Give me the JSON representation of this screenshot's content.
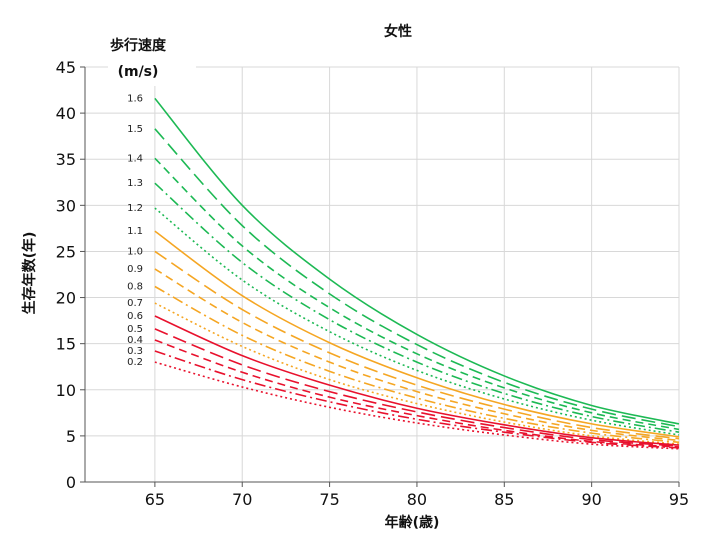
{
  "chart_data": {
    "type": "line",
    "title": "女性",
    "xlabel": "年齢(歳)",
    "ylabel": "生存年数(年)",
    "legend_title": "歩行速度",
    "legend_unit": "(m/s)",
    "xlim": [
      61,
      95
    ],
    "ylim": [
      0,
      45
    ],
    "x_ticks": [
      65,
      70,
      75,
      80,
      85,
      90,
      95
    ],
    "y_ticks": [
      0,
      5,
      10,
      15,
      20,
      25,
      30,
      35,
      40,
      45
    ],
    "grid": true,
    "x": [
      65,
      70,
      75,
      80,
      85,
      90,
      95
    ],
    "series": [
      {
        "name": "1.6",
        "color": "#1db954",
        "dash": "solid",
        "values": [
          41.6,
          30.0,
          22.0,
          16.0,
          11.5,
          8.3,
          6.3
        ]
      },
      {
        "name": "1.5",
        "color": "#1db954",
        "dash": "long",
        "values": [
          38.3,
          27.8,
          20.4,
          14.9,
          10.8,
          7.9,
          6.0
        ]
      },
      {
        "name": "1.4",
        "color": "#1db954",
        "dash": "medium",
        "values": [
          35.1,
          25.6,
          18.9,
          13.9,
          10.2,
          7.5,
          5.7
        ]
      },
      {
        "name": "1.3",
        "color": "#1db954",
        "dash": "dashdot",
        "values": [
          32.4,
          23.8,
          17.6,
          13.0,
          9.6,
          7.1,
          5.4
        ]
      },
      {
        "name": "1.2",
        "color": "#1db954",
        "dash": "dotted",
        "values": [
          29.7,
          21.9,
          16.3,
          12.1,
          9.0,
          6.7,
          5.1
        ]
      },
      {
        "name": "1.1",
        "color": "#f5a623",
        "dash": "solid",
        "values": [
          27.2,
          20.2,
          15.1,
          11.3,
          8.4,
          6.3,
          4.9
        ]
      },
      {
        "name": "1.0",
        "color": "#f5a623",
        "dash": "long",
        "values": [
          25.0,
          18.7,
          14.0,
          10.5,
          7.9,
          5.9,
          4.7
        ]
      },
      {
        "name": "0.9",
        "color": "#f5a623",
        "dash": "medium",
        "values": [
          23.1,
          17.3,
          13.0,
          9.8,
          7.4,
          5.6,
          4.5
        ]
      },
      {
        "name": "0.8",
        "color": "#f5a623",
        "dash": "dashdot",
        "values": [
          21.2,
          15.9,
          12.0,
          9.1,
          6.9,
          5.3,
          4.3
        ]
      },
      {
        "name": "0.7",
        "color": "#f5a623",
        "dash": "dotted",
        "values": [
          19.4,
          14.7,
          11.1,
          8.5,
          6.5,
          5.0,
          4.1
        ]
      },
      {
        "name": "0.6",
        "color": "#e8112d",
        "dash": "solid",
        "values": [
          18.0,
          13.7,
          10.5,
          8.0,
          6.2,
          4.8,
          4.0
        ]
      },
      {
        "name": "0.5",
        "color": "#e8112d",
        "dash": "long",
        "values": [
          16.6,
          12.7,
          9.8,
          7.6,
          5.9,
          4.6,
          3.9
        ]
      },
      {
        "name": "0.4",
        "color": "#e8112d",
        "dash": "medium",
        "values": [
          15.4,
          11.9,
          9.2,
          7.2,
          5.6,
          4.4,
          3.8
        ]
      },
      {
        "name": "0.3",
        "color": "#e8112d",
        "dash": "dashdot",
        "values": [
          14.2,
          11.1,
          8.7,
          6.8,
          5.4,
          4.3,
          3.7
        ]
      },
      {
        "name": "0.2",
        "color": "#e8112d",
        "dash": "dotted",
        "values": [
          13.0,
          10.3,
          8.1,
          6.4,
          5.1,
          4.1,
          3.6
        ]
      }
    ]
  }
}
